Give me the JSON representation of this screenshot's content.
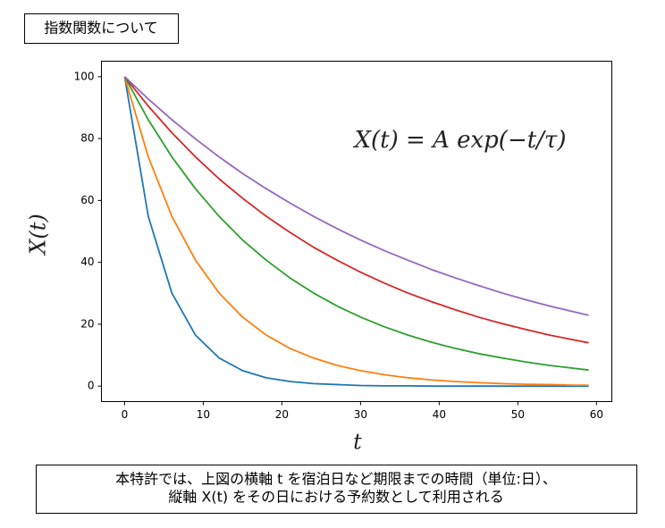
{
  "chart_data": {
    "type": "line",
    "title": "指数関数について",
    "annotation": "X(t) = A exp(−t/τ)",
    "xlabel": "t",
    "ylabel": "X(t)",
    "caption": [
      "本特許では、上図の横軸 t を宿泊日など期限までの時間（単位:日）、",
      "縦軸 X(t) をその日における予約数として利用される"
    ],
    "x": [
      0,
      3,
      6,
      9,
      12,
      15,
      18,
      21,
      24,
      27,
      30,
      33,
      36,
      39,
      42,
      45,
      48,
      51,
      54,
      57,
      59
    ],
    "series": [
      {
        "color": "#1f77b4",
        "values": [
          100,
          54.9,
          30.1,
          16.5,
          9.1,
          5.0,
          2.7,
          1.5,
          0.8,
          0.5,
          0.2,
          0.1,
          0.1,
          0,
          0,
          0,
          0,
          0,
          0,
          0,
          0
        ]
      },
      {
        "color": "#ff7f0e",
        "values": [
          100,
          74.1,
          54.9,
          40.7,
          30.1,
          22.3,
          16.5,
          12.2,
          9.1,
          6.7,
          5.0,
          3.7,
          2.7,
          2.0,
          1.5,
          1.1,
          0.8,
          0.6,
          0.5,
          0.3,
          0.3
        ]
      },
      {
        "color": "#2ca02c",
        "values": [
          100,
          86.1,
          74.1,
          63.8,
          54.9,
          47.2,
          40.7,
          35.0,
          30.1,
          25.9,
          22.3,
          19.2,
          16.5,
          14.2,
          12.2,
          10.5,
          9.1,
          7.8,
          6.7,
          5.8,
          5.2
        ]
      },
      {
        "color": "#d62728",
        "values": [
          100,
          90.5,
          81.9,
          74.1,
          67.0,
          60.7,
          54.9,
          49.7,
          44.9,
          40.7,
          36.8,
          33.3,
          30.1,
          27.3,
          24.7,
          22.3,
          20.2,
          18.3,
          16.5,
          15.0,
          14.0
        ]
      },
      {
        "color": "#9467bd",
        "values": [
          100,
          92.8,
          86.1,
          79.9,
          74.1,
          68.7,
          63.8,
          59.2,
          54.9,
          50.9,
          47.2,
          43.8,
          40.7,
          37.7,
          35.0,
          32.5,
          30.1,
          27.9,
          25.9,
          24.1,
          22.9
        ]
      }
    ],
    "xlim": [
      -2.95,
      61.95
    ],
    "ylim": [
      -5,
      105
    ],
    "xticks": [
      0,
      10,
      20,
      30,
      40,
      50,
      60
    ],
    "yticks": [
      0,
      20,
      40,
      60,
      80,
      100
    ],
    "grid": false
  }
}
